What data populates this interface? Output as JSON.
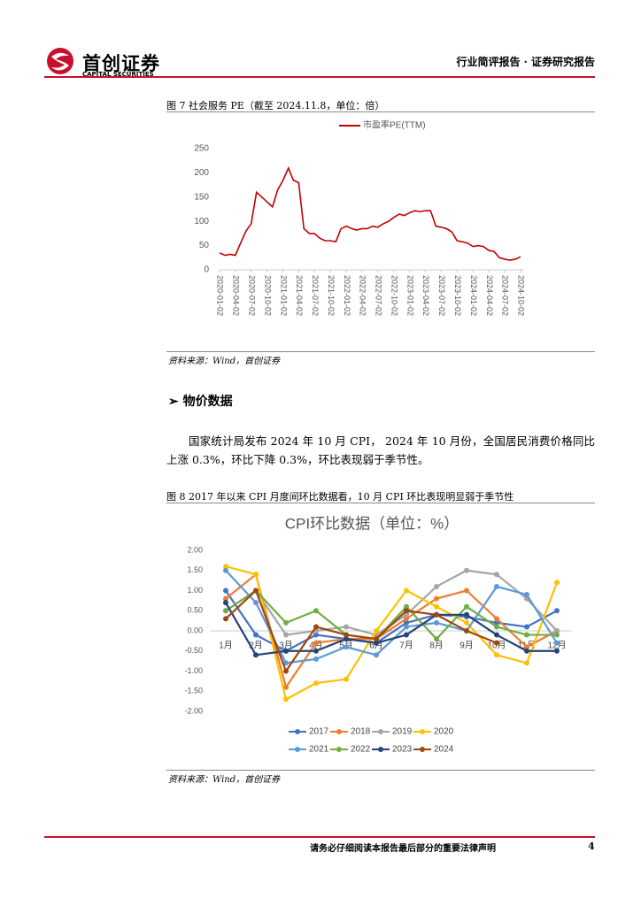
{
  "header": {
    "company": "首创证券",
    "company_en": "CAPITAL SECURITIES",
    "report_type": "行业简评报告 · 证券研究报告"
  },
  "figure_7": {
    "caption": "图 7 社会服务 PE（截至 2024.11.8，单位：倍）",
    "source": "资料来源：Wind，首创证券"
  },
  "section": {
    "heading": "物价数据",
    "paragraph": "国家统计局发布 2024 年 10 月 CPI， 2024 年 10 月份，全国居民消费价格同比上涨 0.3%，环比下降 0.3%，环比表现弱于季节性。"
  },
  "figure_8": {
    "caption": "图 8 2017 年以来 CPI 月度间环比数据看，10 月 CPI 环比表现明显弱于季节性",
    "source": "资料来源：Wind，首创证券"
  },
  "footer": {
    "notice": "请务必仔细阅读本报告最后部分的重要法律声明",
    "page": 4
  },
  "chart_data": [
    {
      "type": "line",
      "x": [
        "2020-01-02",
        "2020-02-02",
        "2020-03-02",
        "2020-04-02",
        "2020-05-02",
        "2020-06-02",
        "2020-07-02",
        "2020-08-02",
        "2020-09-02",
        "2020-10-02",
        "2020-11-02",
        "2020-12-02",
        "2021-01-02",
        "2021-02-02",
        "2021-03-02",
        "2021-04-02",
        "2021-05-02",
        "2021-06-02",
        "2021-07-02",
        "2021-08-02",
        "2021-09-02",
        "2021-10-02",
        "2021-11-02",
        "2021-12-02",
        "2022-01-02",
        "2022-02-02",
        "2022-03-02",
        "2022-04-02",
        "2022-05-02",
        "2022-06-02",
        "2022-07-02",
        "2022-08-02",
        "2022-09-02",
        "2022-10-02",
        "2022-11-02",
        "2022-12-02",
        "2023-01-02",
        "2023-02-02",
        "2023-03-02",
        "2023-04-02",
        "2023-05-02",
        "2023-06-02",
        "2023-07-02",
        "2023-08-02",
        "2023-09-02",
        "2023-10-02",
        "2023-11-02",
        "2023-12-02",
        "2024-01-02",
        "2024-02-02",
        "2024-03-02",
        "2024-04-02",
        "2024-05-02",
        "2024-06-02",
        "2024-07-02",
        "2024-08-02",
        "2024-09-02",
        "2024-10-02"
      ],
      "series": [
        {
          "name": "市盈率PE(TTM)",
          "color": "#c00000",
          "values": [
            35,
            30,
            32,
            30,
            55,
            80,
            95,
            160,
            150,
            140,
            130,
            165,
            185,
            210,
            185,
            180,
            85,
            75,
            75,
            65,
            60,
            60,
            58,
            85,
            90,
            85,
            82,
            85,
            85,
            90,
            88,
            95,
            100,
            108,
            115,
            112,
            118,
            122,
            120,
            122,
            122,
            90,
            88,
            85,
            78,
            60,
            58,
            55,
            48,
            50,
            48,
            40,
            38,
            25,
            22,
            20,
            22,
            27
          ]
        }
      ],
      "ylim": [
        0,
        250
      ],
      "yticks": [
        0,
        50,
        100,
        150,
        200,
        250
      ],
      "xticks": [
        "2020-01-02",
        "2020-04-02",
        "2020-07-02",
        "2020-10-02",
        "2021-01-02",
        "2021-04-02",
        "2021-07-02",
        "2021-10-02",
        "2022-01-02",
        "2022-04-02",
        "2022-07-02",
        "2022-10-02",
        "2023-01-02",
        "2023-04-02",
        "2023-07-02",
        "2023-10-02",
        "2024-01-02",
        "2024-04-02",
        "2024-07-02",
        "2024-10-02"
      ],
      "legend": "top"
    },
    {
      "type": "line",
      "title": "CPI环比数据（单位：%）",
      "categories": [
        "1月",
        "2月",
        "3月",
        "4月",
        "5月",
        "6月",
        "7月",
        "8月",
        "9月",
        "10月",
        "11月",
        "12月"
      ],
      "series": [
        {
          "name": "2017",
          "color": "#4472c4",
          "values": [
            1.0,
            -0.1,
            -0.5,
            -0.1,
            -0.2,
            -0.3,
            0.2,
            0.4,
            0.35,
            0.2,
            0.1,
            0.5
          ]
        },
        {
          "name": "2018",
          "color": "#ed7d31",
          "values": [
            0.8,
            1.4,
            -1.4,
            -0.3,
            -0.2,
            -0.2,
            0.3,
            0.8,
            1.0,
            0.3,
            -0.4,
            0.0
          ]
        },
        {
          "name": "2019",
          "color": "#a5a5a5",
          "values": [
            0.5,
            1.0,
            -0.1,
            0.0,
            0.1,
            -0.1,
            0.4,
            1.1,
            1.5,
            1.4,
            0.8,
            0.0
          ]
        },
        {
          "name": "2020",
          "color": "#ffc000",
          "values": [
            1.6,
            1.4,
            -1.7,
            -1.3,
            -1.2,
            0.0,
            1.0,
            0.6,
            0.2,
            -0.6,
            -0.8,
            1.2
          ]
        },
        {
          "name": "2021",
          "color": "#5b9bd5",
          "values": [
            1.5,
            0.7,
            -0.8,
            -0.7,
            -0.4,
            -0.6,
            0.1,
            0.2,
            0.0,
            1.1,
            0.9,
            -0.3
          ]
        },
        {
          "name": "2022",
          "color": "#70ad47",
          "values": [
            0.5,
            1.0,
            0.2,
            0.5,
            -0.1,
            -0.2,
            0.6,
            -0.2,
            0.6,
            0.1,
            -0.1,
            -0.1
          ]
        },
        {
          "name": "2023",
          "color": "#264478",
          "values": [
            0.7,
            -0.6,
            -0.5,
            -0.5,
            -0.2,
            -0.3,
            -0.1,
            0.4,
            0.4,
            -0.1,
            -0.5,
            -0.5
          ]
        },
        {
          "name": "2024",
          "color": "#9e480e",
          "values": [
            0.3,
            1.0,
            -1.0,
            0.1,
            -0.1,
            -0.2,
            0.5,
            0.4,
            0.0,
            -0.3,
            null,
            null
          ]
        }
      ],
      "ylim": [
        -2,
        2
      ],
      "yticks": [
        {
          "value": -2,
          "label": "-2.00"
        },
        {
          "value": -1.5,
          "label": "-1.50"
        },
        {
          "value": -1,
          "label": "-1.00"
        },
        {
          "value": -0.5,
          "label": "-0.50"
        },
        {
          "value": 0,
          "label": "0.00"
        },
        {
          "value": 0.5,
          "label": "0.50"
        },
        {
          "value": 1,
          "label": "1.00"
        },
        {
          "value": 1.5,
          "label": "1.50"
        },
        {
          "value": 2,
          "label": "2.00"
        }
      ],
      "legend": "bottom"
    }
  ]
}
